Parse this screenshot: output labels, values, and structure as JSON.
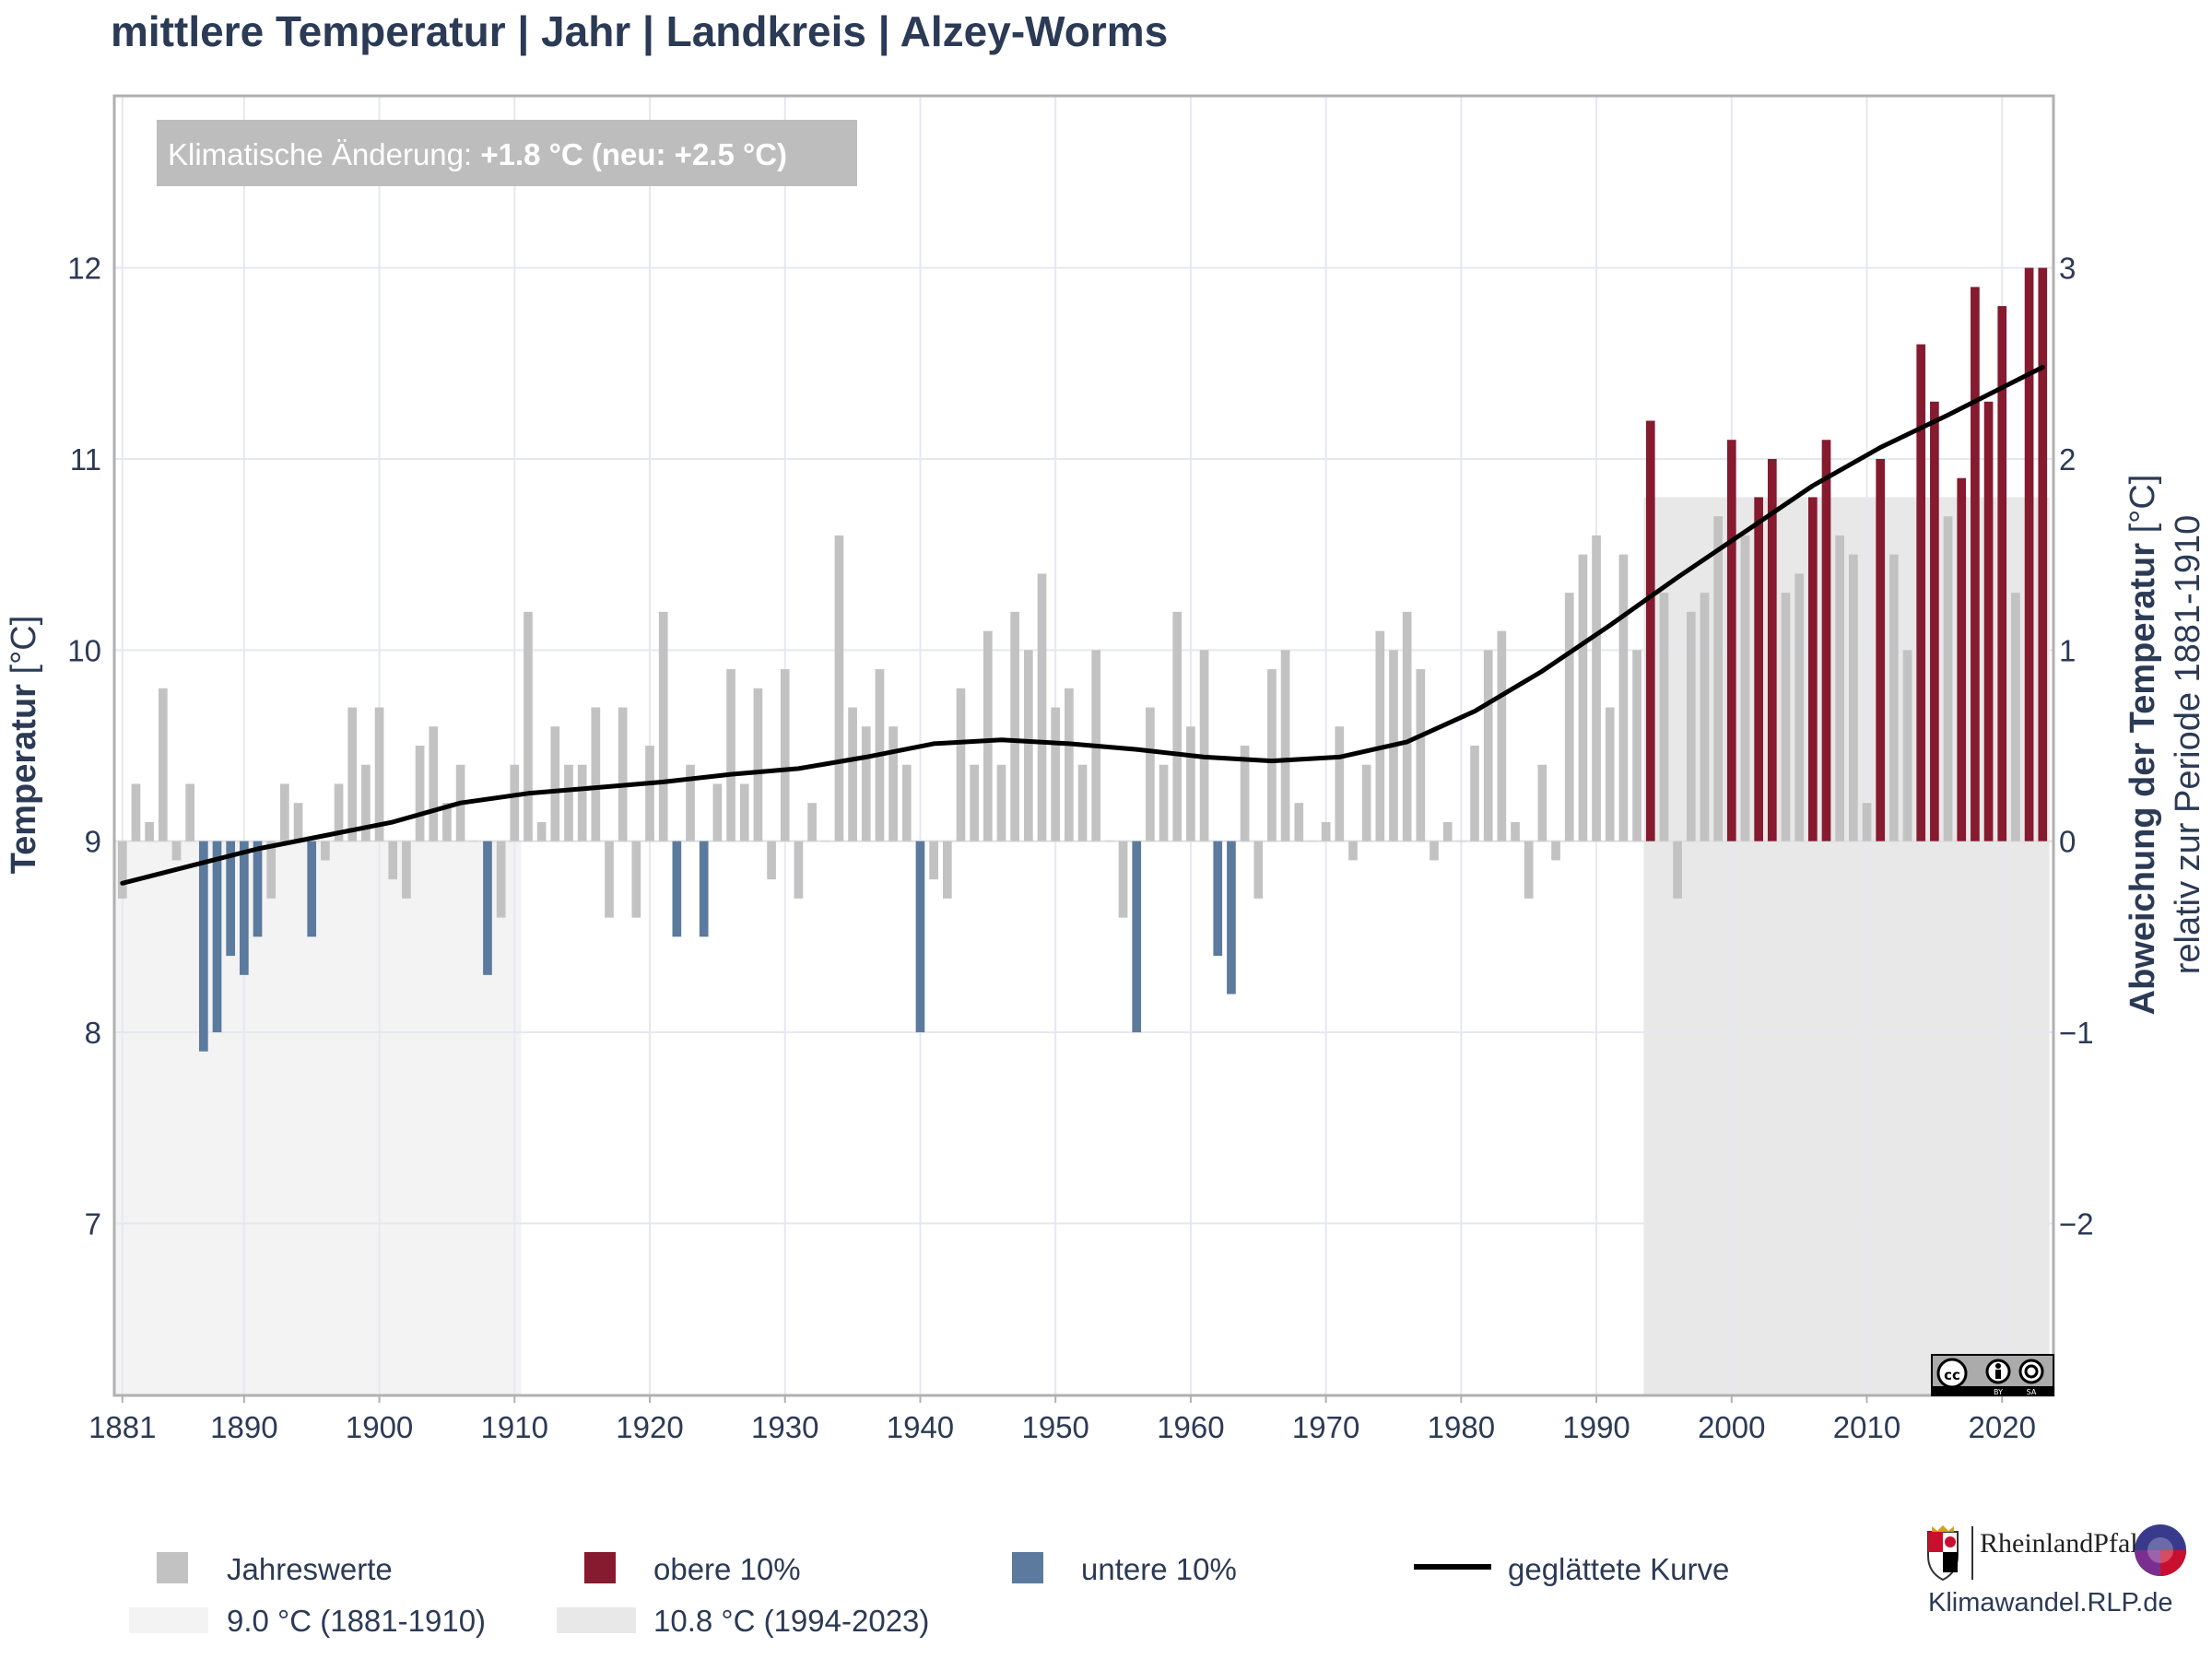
{
  "chart_data": {
    "type": "bar",
    "title": "mittlere Temperatur | Jahr | Landkreis | Alzey-Worms",
    "ylabel": {
      "bold": "Temperatur",
      "unit": " [°C]"
    },
    "y2label": {
      "bold": "Abweichung der Temperatur",
      "unit": " [°C]"
    },
    "y2sublabel": "relativ zur Periode 1881-1910",
    "ylim": [
      6.1,
      12.9
    ],
    "yticks": [
      7,
      8,
      9,
      10,
      11,
      12
    ],
    "y2ticks": [
      -2,
      -1,
      0,
      1,
      2,
      3
    ],
    "y2tick_labels": [
      "−2",
      "−1",
      "0",
      "1",
      "2",
      "3"
    ],
    "xlim": [
      1880.4,
      2023.8
    ],
    "xticks": [
      1881,
      1890,
      1900,
      1910,
      1920,
      1930,
      1940,
      1950,
      1960,
      1970,
      1980,
      1990,
      2000,
      2010,
      2020
    ],
    "baseline": 9.0,
    "annotation": {
      "prefix": "Klimatische Änderung: ",
      "value": "+1.8 °C (neu: +2.5 °C)"
    },
    "grid": true,
    "legend_position": "bottom",
    "colors": {
      "normal": "#c2c2c2",
      "upper": "#861a2f",
      "lower": "#5b7a9e",
      "smooth": "#000000",
      "ref_period_old": "#f3f3f3",
      "ref_period_new": "#e8e8e8",
      "grid": "#e6e8f0",
      "text": "#2b3a55"
    },
    "reference_periods": [
      {
        "label": "9.0 °C (1881-1910)",
        "start": 1881,
        "end": 1910,
        "value": 9.0,
        "color": "#f3f3f3"
      },
      {
        "label": "10.8 °C (1994-2023)",
        "start": 1994,
        "end": 2023,
        "value": 10.8,
        "color": "#e8e8e8"
      }
    ],
    "series": [
      {
        "name": "Jahreswerte",
        "years": [
          1881,
          1882,
          1883,
          1884,
          1885,
          1886,
          1887,
          1888,
          1889,
          1890,
          1891,
          1892,
          1893,
          1894,
          1895,
          1896,
          1897,
          1898,
          1899,
          1900,
          1901,
          1902,
          1903,
          1904,
          1905,
          1906,
          1907,
          1908,
          1909,
          1910,
          1911,
          1912,
          1913,
          1914,
          1915,
          1916,
          1917,
          1918,
          1919,
          1920,
          1921,
          1922,
          1923,
          1924,
          1925,
          1926,
          1927,
          1928,
          1929,
          1930,
          1931,
          1932,
          1933,
          1934,
          1935,
          1936,
          1937,
          1938,
          1939,
          1940,
          1941,
          1942,
          1943,
          1944,
          1945,
          1946,
          1947,
          1948,
          1949,
          1950,
          1951,
          1952,
          1953,
          1954,
          1955,
          1956,
          1957,
          1958,
          1959,
          1960,
          1961,
          1962,
          1963,
          1964,
          1965,
          1966,
          1967,
          1968,
          1969,
          1970,
          1971,
          1972,
          1973,
          1974,
          1975,
          1976,
          1977,
          1978,
          1979,
          1980,
          1981,
          1982,
          1983,
          1984,
          1985,
          1986,
          1987,
          1988,
          1989,
          1990,
          1991,
          1992,
          1993,
          1994,
          1995,
          1996,
          1997,
          1998,
          1999,
          2000,
          2001,
          2002,
          2003,
          2004,
          2005,
          2006,
          2007,
          2008,
          2009,
          2010,
          2011,
          2012,
          2013,
          2014,
          2015,
          2016,
          2017,
          2018,
          2019,
          2020,
          2021,
          2022,
          2023
        ],
        "values": [
          8.7,
          9.3,
          9.1,
          9.8,
          8.9,
          9.3,
          7.9,
          8.0,
          8.4,
          8.3,
          8.5,
          8.7,
          9.3,
          9.2,
          8.5,
          8.9,
          9.3,
          9.7,
          9.4,
          9.7,
          8.8,
          8.7,
          9.5,
          9.6,
          9.2,
          9.4,
          9.0,
          8.3,
          8.6,
          9.4,
          10.2,
          9.1,
          9.6,
          9.4,
          9.4,
          9.7,
          8.6,
          9.7,
          8.6,
          9.5,
          10.2,
          8.5,
          9.4,
          8.5,
          9.3,
          9.9,
          9.3,
          9.8,
          8.8,
          9.9,
          8.7,
          9.2,
          9.0,
          10.6,
          9.7,
          9.6,
          9.9,
          9.6,
          9.4,
          8.0,
          8.8,
          8.7,
          9.8,
          9.4,
          10.1,
          9.4,
          10.2,
          10.0,
          10.4,
          9.7,
          9.8,
          9.4,
          10.0,
          9.0,
          8.6,
          8.0,
          9.7,
          9.4,
          10.2,
          9.6,
          10.0,
          8.4,
          8.2,
          9.5,
          8.7,
          9.9,
          10.0,
          9.2,
          9.0,
          9.1,
          9.6,
          8.9,
          9.4,
          10.1,
          10.0,
          10.2,
          9.9,
          8.9,
          9.1,
          9.0,
          9.5,
          10.0,
          10.1,
          9.1,
          8.7,
          9.4,
          8.9,
          10.3,
          10.5,
          10.6,
          9.7,
          10.5,
          10.0,
          11.2,
          10.3,
          8.7,
          10.2,
          10.3,
          10.7,
          11.1,
          10.6,
          10.8,
          11.0,
          10.3,
          10.4,
          10.8,
          11.1,
          10.6,
          10.5,
          9.2,
          11.0,
          10.5,
          10.0,
          11.6,
          11.3,
          10.7,
          10.9,
          11.9,
          11.3,
          11.8,
          10.3,
          12.0,
          12.0
        ]
      },
      {
        "name": "obere 10%"
      },
      {
        "name": "untere 10%"
      },
      {
        "name": "geglättete Kurve",
        "x": [
          1881,
          1886,
          1891,
          1896,
          1901,
          1906,
          1911,
          1916,
          1921,
          1926,
          1931,
          1936,
          1941,
          1946,
          1951,
          1956,
          1961,
          1966,
          1971,
          1976,
          1981,
          1986,
          1991,
          1996,
          2001,
          2006,
          2011,
          2016,
          2023
        ],
        "values": [
          8.78,
          8.87,
          8.96,
          9.03,
          9.1,
          9.2,
          9.25,
          9.28,
          9.31,
          9.35,
          9.38,
          9.44,
          9.51,
          9.53,
          9.51,
          9.48,
          9.44,
          9.42,
          9.44,
          9.52,
          9.68,
          9.89,
          10.13,
          10.38,
          10.62,
          10.86,
          11.06,
          11.23,
          11.48
        ]
      }
    ]
  },
  "legend": {
    "items": [
      {
        "label": "Jahreswerte",
        "color": "#c2c2c2"
      },
      {
        "label": "obere 10%",
        "color": "#861a2f"
      },
      {
        "label": "untere 10%",
        "color": "#5b7a9e"
      },
      {
        "label": "geglättete Kurve",
        "color": "#000000"
      }
    ],
    "period_items": [
      {
        "label": "9.0 °C (1881-1910)",
        "color": "#f3f3f3"
      },
      {
        "label": "10.8 °C (1994-2023)",
        "color": "#e8e8e8"
      }
    ]
  },
  "branding": {
    "state_name": "RheinlandPfalz",
    "url": "Klimawandel.RLP.de",
    "license_icon": "cc-by-sa-icon",
    "coat_of_arms_icon": "coat-of-arms-icon",
    "logo_icon": "klima-folgen-anpassung-logo-icon"
  }
}
